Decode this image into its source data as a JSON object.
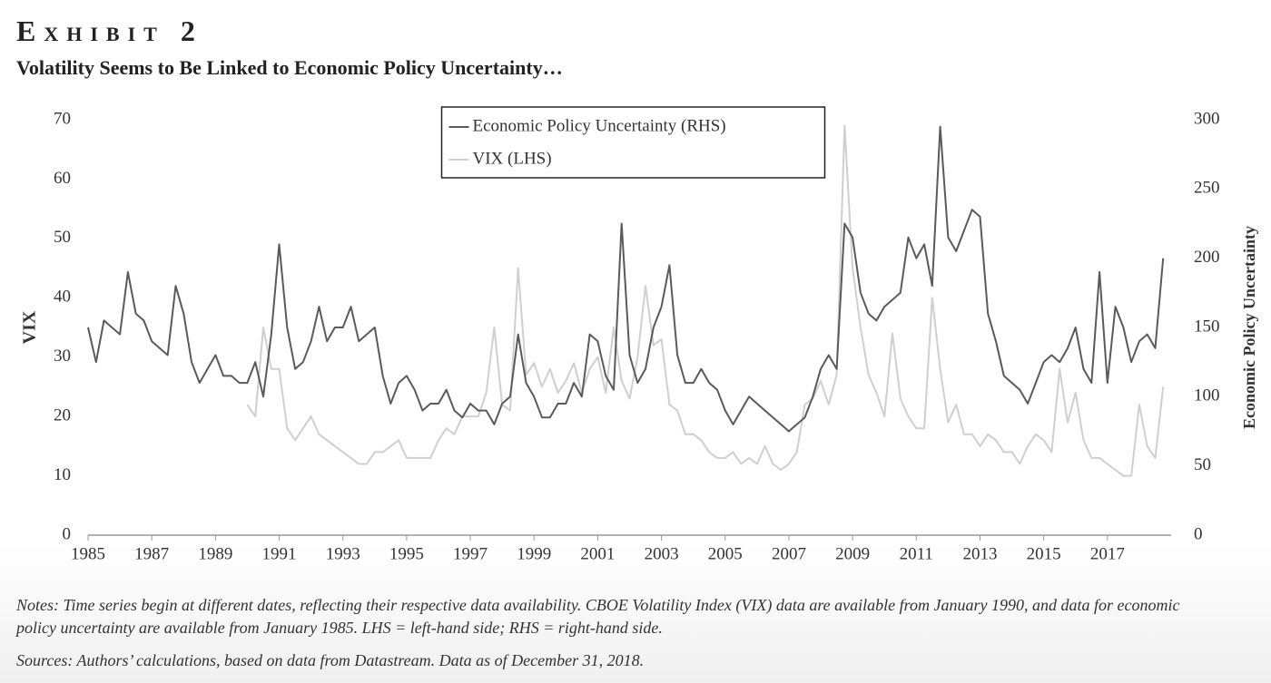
{
  "chart_data": {
    "type": "line",
    "title": "Exhibit 2",
    "subtitle": "Volatility Seems to Be Linked to Economic Policy Uncertainty…",
    "y_label": "VIX",
    "y2_label": "Economic Policy Uncertainty",
    "legend": "top-center",
    "xlim": [
      1985,
      2019
    ],
    "xticks": [
      1985,
      1987,
      1989,
      1991,
      1993,
      1995,
      1997,
      1999,
      2001,
      2003,
      2005,
      2007,
      2009,
      2011,
      2013,
      2015,
      2017
    ],
    "ylim": [
      0,
      70
    ],
    "yticks": [
      0,
      10,
      20,
      30,
      40,
      50,
      60,
      70
    ],
    "y2lim": [
      0,
      300
    ],
    "y2ticks": [
      0,
      50,
      100,
      150,
      200,
      250,
      300
    ],
    "series": [
      {
        "name": "Economic Policy Uncertainty (RHS)",
        "color": "#5a5a5a",
        "axis": "y2",
        "x": [
          1985,
          1985.25,
          1985.5,
          1985.75,
          1986,
          1986.25,
          1986.5,
          1986.75,
          1987,
          1987.25,
          1987.5,
          1987.75,
          1988,
          1988.25,
          1988.5,
          1988.75,
          1989,
          1989.25,
          1989.5,
          1989.75,
          1990,
          1990.25,
          1990.5,
          1990.75,
          1991,
          1991.25,
          1991.5,
          1991.75,
          1992,
          1992.25,
          1992.5,
          1992.75,
          1993,
          1993.25,
          1993.5,
          1993.75,
          1994,
          1994.25,
          1994.5,
          1994.75,
          1995,
          1995.25,
          1995.5,
          1995.75,
          1996,
          1996.25,
          1996.5,
          1996.75,
          1997,
          1997.25,
          1997.5,
          1997.75,
          1998,
          1998.25,
          1998.5,
          1998.75,
          1999,
          1999.25,
          1999.5,
          1999.75,
          2000,
          2000.25,
          2000.5,
          2000.75,
          2001,
          2001.25,
          2001.5,
          2001.75,
          2002,
          2002.25,
          2002.5,
          2002.75,
          2003,
          2003.25,
          2003.5,
          2003.75,
          2004,
          2004.25,
          2004.5,
          2004.75,
          2005,
          2005.25,
          2005.5,
          2005.75,
          2006,
          2006.25,
          2006.5,
          2006.75,
          2007,
          2007.25,
          2007.5,
          2007.75,
          2008,
          2008.25,
          2008.5,
          2008.75,
          2009,
          2009.25,
          2009.5,
          2009.75,
          2010,
          2010.25,
          2010.5,
          2010.75,
          2011,
          2011.25,
          2011.5,
          2011.75,
          2012,
          2012.25,
          2012.5,
          2012.75,
          2013,
          2013.25,
          2013.5,
          2013.75,
          2014,
          2014.25,
          2014.5,
          2014.75,
          2015,
          2015.25,
          2015.5,
          2015.75,
          2016,
          2016.25,
          2016.5,
          2016.75,
          2017,
          2017.25,
          2017.5,
          2017.75,
          2018,
          2018.25,
          2018.5,
          2018.75
        ],
        "values": [
          150,
          125,
          155,
          150,
          145,
          190,
          160,
          155,
          140,
          135,
          130,
          180,
          160,
          125,
          110,
          120,
          130,
          115,
          115,
          110,
          110,
          125,
          100,
          145,
          210,
          150,
          120,
          125,
          140,
          165,
          140,
          150,
          150,
          165,
          140,
          145,
          150,
          115,
          95,
          110,
          115,
          105,
          90,
          95,
          95,
          105,
          90,
          85,
          95,
          90,
          90,
          80,
          95,
          100,
          145,
          110,
          100,
          85,
          85,
          95,
          95,
          110,
          100,
          145,
          140,
          115,
          105,
          225,
          130,
          110,
          120,
          150,
          165,
          195,
          130,
          110,
          110,
          120,
          110,
          105,
          90,
          80,
          90,
          100,
          95,
          90,
          85,
          80,
          75,
          80,
          85,
          100,
          120,
          130,
          120,
          225,
          215,
          175,
          160,
          155,
          165,
          170,
          175,
          215,
          200,
          210,
          180,
          295,
          215,
          205,
          220,
          235,
          230,
          160,
          140,
          115,
          110,
          105,
          95,
          110,
          125,
          130,
          125,
          135,
          150,
          120,
          110,
          190,
          110,
          165,
          150,
          125,
          140,
          145,
          135,
          200
        ]
      },
      {
        "name": "VIX (LHS)",
        "color": "#cfcfcf",
        "x": [
          1990,
          1990.25,
          1990.5,
          1990.75,
          1991,
          1991.25,
          1991.5,
          1991.75,
          1992,
          1992.25,
          1992.5,
          1992.75,
          1993,
          1993.25,
          1993.5,
          1993.75,
          1994,
          1994.25,
          1994.5,
          1994.75,
          1995,
          1995.25,
          1995.5,
          1995.75,
          1996,
          1996.25,
          1996.5,
          1996.75,
          1997,
          1997.25,
          1997.5,
          1997.75,
          1998,
          1998.25,
          1998.5,
          1998.75,
          1999,
          1999.25,
          1999.5,
          1999.75,
          2000,
          2000.25,
          2000.5,
          2000.75,
          2001,
          2001.25,
          2001.5,
          2001.75,
          2002,
          2002.25,
          2002.5,
          2002.75,
          2003,
          2003.25,
          2003.5,
          2003.75,
          2004,
          2004.25,
          2004.5,
          2004.75,
          2005,
          2005.25,
          2005.5,
          2005.75,
          2006,
          2006.25,
          2006.5,
          2006.75,
          2007,
          2007.25,
          2007.5,
          2007.75,
          2008,
          2008.25,
          2008.5,
          2008.75,
          2009,
          2009.25,
          2009.5,
          2009.75,
          2010,
          2010.25,
          2010.5,
          2010.75,
          2011,
          2011.25,
          2011.5,
          2011.75,
          2012,
          2012.25,
          2012.5,
          2012.75,
          2013,
          2013.25,
          2013.5,
          2013.75,
          2014,
          2014.25,
          2014.5,
          2014.75,
          2015,
          2015.25,
          2015.5,
          2015.75,
          2016,
          2016.25,
          2016.5,
          2016.75,
          2017,
          2017.25,
          2017.5,
          2017.75,
          2018,
          2018.25,
          2018.5,
          2018.75
        ],
        "values": [
          22,
          20,
          35,
          28,
          28,
          18,
          16,
          18,
          20,
          17,
          16,
          15,
          14,
          13,
          12,
          12,
          14,
          14,
          15,
          16,
          13,
          13,
          13,
          13,
          16,
          18,
          17,
          20,
          20,
          20,
          24,
          35,
          22,
          21,
          45,
          27,
          29,
          25,
          28,
          24,
          26,
          29,
          24,
          28,
          30,
          24,
          35,
          26,
          23,
          30,
          42,
          32,
          33,
          22,
          21,
          17,
          17,
          16,
          14,
          13,
          13,
          14,
          12,
          13,
          12,
          15,
          12,
          11,
          12,
          14,
          22,
          23,
          26,
          22,
          27,
          69,
          45,
          35,
          27,
          24,
          20,
          34,
          23,
          20,
          18,
          18,
          40,
          28,
          19,
          22,
          17,
          17,
          15,
          17,
          16,
          14,
          14,
          12,
          15,
          17,
          16,
          14,
          28,
          19,
          24,
          16,
          13,
          13,
          12,
          11,
          10,
          10,
          22,
          15,
          13,
          25
        ]
      }
    ],
    "notes": "Notes: Time series begin at different dates, reflecting their respective data availability. CBOE Volatility Index (VIX) data are available from January 1990, and data for economic policy uncertainty are available from January 1985. LHS = left-hand side; RHS = right-hand side.",
    "sources": "Sources: Authors’ calculations, based on data from Datastream. Data as of December 31, 2018."
  }
}
